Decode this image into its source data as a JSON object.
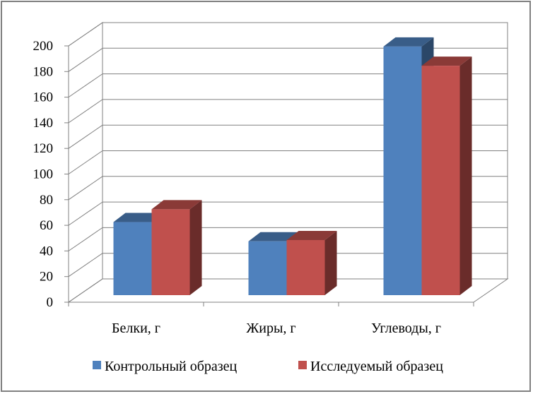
{
  "chart_data": {
    "type": "bar",
    "categories": [
      "Белки, г",
      "Жиры, г",
      "Углеводы, г"
    ],
    "series": [
      {
        "name": "Контрольный образец",
        "values": [
          57,
          42,
          194
        ],
        "color": "#4F81BD"
      },
      {
        "name": "Исследуемый образец",
        "values": [
          67,
          43,
          179
        ],
        "color": "#C0504D"
      }
    ],
    "ylim": [
      0,
      200
    ],
    "yticks": [
      "0",
      "20",
      "40",
      "60",
      "80",
      "100",
      "120",
      "140",
      "160",
      "180",
      "200"
    ],
    "grid": true,
    "legend_position": "bottom",
    "style": "3d-clustered"
  }
}
